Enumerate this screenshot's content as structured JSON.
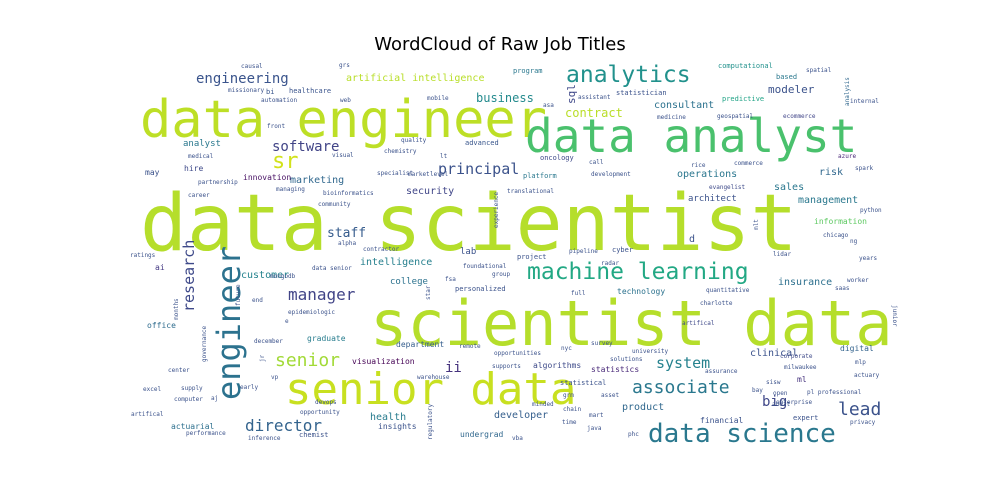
{
  "chart_data": {
    "type": "wordcloud",
    "title": "WordCloud of Raw Job Titles",
    "background": "#ffffff",
    "colormap": "viridis",
    "words": [
      {
        "text": "data scientist",
        "weight": 100,
        "color": "#b5de2b"
      },
      {
        "text": "scientist data",
        "weight": 82,
        "color": "#b5de2b"
      },
      {
        "text": "data engineer",
        "weight": 72,
        "color": "#bddf26"
      },
      {
        "text": "data analyst",
        "weight": 69,
        "color": "#4ac16d"
      },
      {
        "text": "senior data",
        "weight": 58,
        "color": "#c8e020"
      },
      {
        "text": "engineer",
        "weight": 44,
        "color": "#2c728e"
      },
      {
        "text": "data science",
        "weight": 40,
        "color": "#2a788e"
      },
      {
        "text": "machine learning",
        "weight": 34,
        "color": "#22a884"
      },
      {
        "text": "analytics",
        "weight": 32,
        "color": "#21918c"
      },
      {
        "text": "sr",
        "weight": 32,
        "color": "#d2e21b"
      },
      {
        "text": "senior",
        "weight": 26,
        "color": "#a2da37"
      },
      {
        "text": "associate",
        "weight": 26,
        "color": "#2a788e"
      },
      {
        "text": "lead",
        "weight": 26,
        "color": "#3b528b"
      },
      {
        "text": "research",
        "weight": 24,
        "color": "#3e4989"
      },
      {
        "text": "manager",
        "weight": 24,
        "color": "#414487"
      },
      {
        "text": "director",
        "weight": 24,
        "color": "#33638d"
      },
      {
        "text": "system",
        "weight": 22,
        "color": "#26828e"
      },
      {
        "text": "principal",
        "weight": 22,
        "color": "#3b528b"
      },
      {
        "text": "engineering",
        "weight": 20,
        "color": "#3a548c"
      },
      {
        "text": "software",
        "weight": 20,
        "color": "#414487"
      },
      {
        "text": "ii",
        "weight": 20,
        "color": "#46337e"
      },
      {
        "text": "big",
        "weight": 20,
        "color": "#3f4788"
      },
      {
        "text": "staff",
        "weight": 18,
        "color": "#365c8d"
      },
      {
        "text": "business",
        "weight": 17,
        "color": "#238a8d"
      },
      {
        "text": "sql",
        "weight": 16,
        "color": "#3f4889"
      },
      {
        "text": "artificial intelligence",
        "weight": 14,
        "color": "#b8de29"
      },
      {
        "text": "modeler",
        "weight": 16,
        "color": "#3b528b"
      },
      {
        "text": "contract",
        "weight": 16,
        "color": "#bade28"
      },
      {
        "text": "consultant",
        "weight": 14,
        "color": "#2c728e"
      },
      {
        "text": "marketing",
        "weight": 14,
        "color": "#31688e"
      },
      {
        "text": "security",
        "weight": 14,
        "color": "#404688"
      },
      {
        "text": "health",
        "weight": 14,
        "color": "#287c8e"
      },
      {
        "text": "product",
        "weight": 14,
        "color": "#31688e"
      },
      {
        "text": "developer",
        "weight": 14,
        "color": "#355f8d"
      },
      {
        "text": "clinical",
        "weight": 14,
        "color": "#3b528b"
      },
      {
        "text": "sales",
        "weight": 14,
        "color": "#2a778e"
      },
      {
        "text": "risk",
        "weight": 14,
        "color": "#31688e"
      },
      {
        "text": "customer",
        "weight": 13,
        "color": "#25838e"
      },
      {
        "text": "intelligence",
        "weight": 13,
        "color": "#27808e"
      },
      {
        "text": "insurance",
        "weight": 13,
        "color": "#2d708e"
      },
      {
        "text": "management",
        "weight": 13,
        "color": "#2a788e"
      },
      {
        "text": "operations",
        "weight": 13,
        "color": "#2a768e"
      },
      {
        "text": "architect",
        "weight": 11,
        "color": "#3b528b"
      },
      {
        "text": "analyst",
        "weight": 11,
        "color": "#2a788e"
      },
      {
        "text": "hire",
        "weight": 11,
        "color": "#3e4989"
      },
      {
        "text": "innovation",
        "weight": 11,
        "color": "#471063"
      },
      {
        "text": "lab",
        "weight": 11,
        "color": "#3b528b"
      },
      {
        "text": "college",
        "weight": 11,
        "color": "#2c728e"
      },
      {
        "text": "technology",
        "weight": 11,
        "color": "#2c728e"
      },
      {
        "text": "graduate",
        "weight": 11,
        "color": "#287d8e"
      },
      {
        "text": "department",
        "weight": 11,
        "color": "#355e8d"
      },
      {
        "text": "visualization",
        "weight": 11,
        "color": "#440154"
      },
      {
        "text": "algorithms",
        "weight": 11,
        "color": "#3e4a89"
      },
      {
        "text": "statistics",
        "weight": 11,
        "color": "#482878"
      },
      {
        "text": "actuarial",
        "weight": 11,
        "color": "#2d708e"
      },
      {
        "text": "insights",
        "weight": 11,
        "color": "#3b528b"
      },
      {
        "text": "undergrad",
        "weight": 11,
        "color": "#31688e"
      },
      {
        "text": "office",
        "weight": 11,
        "color": "#2f6c8e"
      },
      {
        "text": "ai",
        "weight": 11,
        "color": "#443983"
      },
      {
        "text": "ml",
        "weight": 11,
        "color": "#46337e"
      },
      {
        "text": "financial",
        "weight": 11,
        "color": "#3b528b"
      },
      {
        "text": "digital",
        "weight": 11,
        "color": "#33638d"
      },
      {
        "text": "healthcare",
        "weight": 9,
        "color": "#3a548c"
      },
      {
        "text": "bi",
        "weight": 9,
        "color": "#39568c"
      },
      {
        "text": "program",
        "weight": 9,
        "color": "#2a788e"
      },
      {
        "text": "statistician",
        "weight": 9,
        "color": "#3b528b"
      },
      {
        "text": "computational",
        "weight": 9,
        "color": "#21918c"
      },
      {
        "text": "spatial",
        "weight": 9,
        "color": "#3b528b"
      },
      {
        "text": "analysis",
        "weight": 9,
        "color": "#31688e"
      },
      {
        "text": "based",
        "weight": 9,
        "color": "#2a788e"
      },
      {
        "text": "predictive",
        "weight": 9,
        "color": "#20a386"
      },
      {
        "text": "internal",
        "weight": 9,
        "color": "#3b528b"
      },
      {
        "text": "ecommerce",
        "weight": 9,
        "color": "#404588"
      },
      {
        "text": "advanced",
        "weight": 9,
        "color": "#39568c"
      },
      {
        "text": "oncology",
        "weight": 9,
        "color": "#3e4989"
      },
      {
        "text": "platform",
        "weight": 9,
        "color": "#2a788e"
      },
      {
        "text": "commerce",
        "weight": 9,
        "color": "#3b528b"
      },
      {
        "text": "evangelist",
        "weight": 9,
        "color": "#3e4a89"
      },
      {
        "text": "spark",
        "weight": 9,
        "color": "#3b528b"
      },
      {
        "text": "azure",
        "weight": 9,
        "color": "#482677"
      },
      {
        "text": "python",
        "weight": 9,
        "color": "#3b528b"
      },
      {
        "text": "information",
        "weight": 9,
        "color": "#5ec962"
      },
      {
        "text": "chicago",
        "weight": 9,
        "color": "#3b528b"
      },
      {
        "text": "lidar",
        "weight": 9,
        "color": "#3b528b"
      },
      {
        "text": "years",
        "weight": 9,
        "color": "#3b528b"
      },
      {
        "text": "worker",
        "weight": 9,
        "color": "#3b528b"
      },
      {
        "text": "saas",
        "weight": 9,
        "color": "#3b528b"
      },
      {
        "text": "charlotte",
        "weight": 9,
        "color": "#3b528b"
      },
      {
        "text": "quantitative",
        "weight": 9,
        "color": "#3b528b"
      },
      {
        "text": "artifical",
        "weight": 9,
        "color": "#3e4989"
      },
      {
        "text": "corporate",
        "weight": 9,
        "color": "#3e4989"
      },
      {
        "text": "mlp",
        "weight": 9,
        "color": "#3b528b"
      },
      {
        "text": "actuary",
        "weight": 9,
        "color": "#3b528b"
      },
      {
        "text": "milwaukee",
        "weight": 9,
        "color": "#3b528b"
      },
      {
        "text": "open",
        "weight": 9,
        "color": "#3b528b"
      },
      {
        "text": "audit",
        "weight": 9,
        "color": "#3b528b"
      },
      {
        "text": "enterprise",
        "weight": 9,
        "color": "#3b528b"
      },
      {
        "text": "expert",
        "weight": 9,
        "color": "#3b528b"
      },
      {
        "text": "privacy",
        "weight": 9,
        "color": "#3b528b"
      },
      {
        "text": "java",
        "weight": 9,
        "color": "#3b528b"
      },
      {
        "text": "phc",
        "weight": 9,
        "color": "#3b528b"
      },
      {
        "text": "vba",
        "weight": 9,
        "color": "#3b528b"
      },
      {
        "text": "chemist",
        "weight": 9,
        "color": "#3b528b"
      },
      {
        "text": "performance",
        "weight": 9,
        "color": "#3b528b"
      },
      {
        "text": "inference",
        "weight": 9,
        "color": "#3b528b"
      },
      {
        "text": "computer",
        "weight": 9,
        "color": "#3b528b"
      },
      {
        "text": "excel",
        "weight": 9,
        "color": "#3b528b"
      },
      {
        "text": "center",
        "weight": 9,
        "color": "#3b528b"
      },
      {
        "text": "supply",
        "weight": 9,
        "color": "#3b528b"
      },
      {
        "text": "early",
        "weight": 9,
        "color": "#3b528b"
      },
      {
        "text": "december",
        "weight": 9,
        "color": "#3b528b"
      },
      {
        "text": "epidemiologic",
        "weight": 9,
        "color": "#3b528b"
      },
      {
        "text": "mongodb",
        "weight": 9,
        "color": "#3b528b"
      },
      {
        "text": "ratings",
        "weight": 9,
        "color": "#3b528b"
      },
      {
        "text": "contractor",
        "weight": 9,
        "color": "#3b528b"
      },
      {
        "text": "alpha",
        "weight": 9,
        "color": "#3b528b"
      },
      {
        "text": "community",
        "weight": 9,
        "color": "#3b528b"
      },
      {
        "text": "bioinformatics",
        "weight": 9,
        "color": "#3b528b"
      },
      {
        "text": "career",
        "weight": 9,
        "color": "#3b528b"
      },
      {
        "text": "managing",
        "weight": 9,
        "color": "#3b528b"
      },
      {
        "text": "medical",
        "weight": 9,
        "color": "#3b528b"
      },
      {
        "text": "visual",
        "weight": 9,
        "color": "#3b528b"
      },
      {
        "text": "chemistry",
        "weight": 9,
        "color": "#3b528b"
      },
      {
        "text": "quality",
        "weight": 9,
        "color": "#3b528b"
      },
      {
        "text": "front",
        "weight": 9,
        "color": "#3b528b"
      },
      {
        "text": "automation",
        "weight": 9,
        "color": "#3b528b"
      },
      {
        "text": "web",
        "weight": 9,
        "color": "#3b528b"
      },
      {
        "text": "missionary",
        "weight": 9,
        "color": "#3b528b"
      },
      {
        "text": "causal",
        "weight": 9,
        "color": "#3b528b"
      },
      {
        "text": "grs",
        "weight": 9,
        "color": "#3b528b"
      },
      {
        "text": "mobile",
        "weight": 9,
        "color": "#3b528b"
      },
      {
        "text": "asa",
        "weight": 9,
        "color": "#3b528b"
      },
      {
        "text": "assistant",
        "weight": 9,
        "color": "#3b528b"
      },
      {
        "text": "medicine",
        "weight": 9,
        "color": "#3b528b"
      },
      {
        "text": "geospatial",
        "weight": 9,
        "color": "#3b528b"
      },
      {
        "text": "call",
        "weight": 9,
        "color": "#3b528b"
      },
      {
        "text": "development",
        "weight": 9,
        "color": "#3b528b"
      },
      {
        "text": "rice",
        "weight": 9,
        "color": "#3b528b"
      },
      {
        "text": "mlt",
        "weight": 9,
        "color": "#3b528b"
      },
      {
        "text": "partnership",
        "weight": 9,
        "color": "#3b528b"
      },
      {
        "text": "specialist",
        "weight": 9,
        "color": "#3b528b"
      },
      {
        "text": "market",
        "weight": 9,
        "color": "#3b528b"
      },
      {
        "text": "level",
        "weight": 9,
        "color": "#3b528b"
      },
      {
        "text": "lt",
        "weight": 9,
        "color": "#3b528b"
      },
      {
        "text": "translational",
        "weight": 9,
        "color": "#3b528b"
      },
      {
        "text": "experience",
        "weight": 9,
        "color": "#3b528b"
      },
      {
        "text": "pipeline",
        "weight": 9,
        "color": "#3b528b"
      },
      {
        "text": "cyber",
        "weight": 9,
        "color": "#3b528b"
      },
      {
        "text": "radar",
        "weight": 9,
        "color": "#3b528b"
      },
      {
        "text": "project",
        "weight": 9,
        "color": "#3b528b"
      },
      {
        "text": "foundational",
        "weight": 9,
        "color": "#3b528b"
      },
      {
        "text": "group",
        "weight": 9,
        "color": "#3b528b"
      },
      {
        "text": "personalized",
        "weight": 9,
        "color": "#3b528b"
      },
      {
        "text": "fsa",
        "weight": 9,
        "color": "#3b528b"
      },
      {
        "text": "star",
        "weight": 9,
        "color": "#3b528b"
      },
      {
        "text": "full",
        "weight": 9,
        "color": "#3b528b"
      },
      {
        "text": "remote",
        "weight": 9,
        "color": "#3b528b"
      },
      {
        "text": "opportunities",
        "weight": 9,
        "color": "#3b528b"
      },
      {
        "text": "nyc",
        "weight": 9,
        "color": "#3b528b"
      },
      {
        "text": "survey",
        "weight": 9,
        "color": "#3b528b"
      },
      {
        "text": "solutions",
        "weight": 9,
        "color": "#3b528b"
      },
      {
        "text": "university",
        "weight": 9,
        "color": "#3b528b"
      },
      {
        "text": "supports",
        "weight": 9,
        "color": "#3b528b"
      },
      {
        "text": "statistical",
        "weight": 9,
        "color": "#3b528b"
      },
      {
        "text": "grm",
        "weight": 9,
        "color": "#3b528b"
      },
      {
        "text": "asset",
        "weight": 9,
        "color": "#3b528b"
      },
      {
        "text": "minded",
        "weight": 9,
        "color": "#3b528b"
      },
      {
        "text": "chain",
        "weight": 9,
        "color": "#3b528b"
      },
      {
        "text": "mart",
        "weight": 9,
        "color": "#3b528b"
      },
      {
        "text": "time",
        "weight": 9,
        "color": "#3b528b"
      },
      {
        "text": "assurance",
        "weight": 9,
        "color": "#3b528b"
      },
      {
        "text": "sisw",
        "weight": 9,
        "color": "#3b528b"
      },
      {
        "text": "bay",
        "weight": 9,
        "color": "#3b528b"
      },
      {
        "text": "pl professional",
        "weight": 9,
        "color": "#3b528b"
      },
      {
        "text": "regulatory",
        "weight": 9,
        "color": "#3b528b"
      },
      {
        "text": "warehouse",
        "weight": 9,
        "color": "#3b528b"
      },
      {
        "text": "devops",
        "weight": 9,
        "color": "#3b528b"
      },
      {
        "text": "opportunity",
        "weight": 9,
        "color": "#3b528b"
      },
      {
        "text": "vp",
        "weight": 9,
        "color": "#3b528b"
      },
      {
        "text": "jr",
        "weight": 9,
        "color": "#3b528b"
      },
      {
        "text": "governance",
        "weight": 9,
        "color": "#3b528b"
      },
      {
        "text": "months",
        "weight": 9,
        "color": "#3b528b"
      },
      {
        "text": "future",
        "weight": 9,
        "color": "#3b528b"
      },
      {
        "text": "end",
        "weight": 9,
        "color": "#3b528b"
      },
      {
        "text": "data senior",
        "weight": 9,
        "color": "#3b528b"
      },
      {
        "text": "junior",
        "weight": 9,
        "color": "#3b528b"
      },
      {
        "text": "ng",
        "weight": 9,
        "color": "#3b528b"
      },
      {
        "text": "may",
        "weight": 9,
        "color": "#3b528b"
      },
      {
        "text": "d",
        "weight": 9,
        "color": "#3b528b"
      },
      {
        "text": "e",
        "weight": 9,
        "color": "#3b528b"
      },
      {
        "text": "aj",
        "weight": 9,
        "color": "#3b528b"
      },
      {
        "text": "artifical",
        "weight": 9,
        "color": "#3b528b"
      }
    ]
  }
}
